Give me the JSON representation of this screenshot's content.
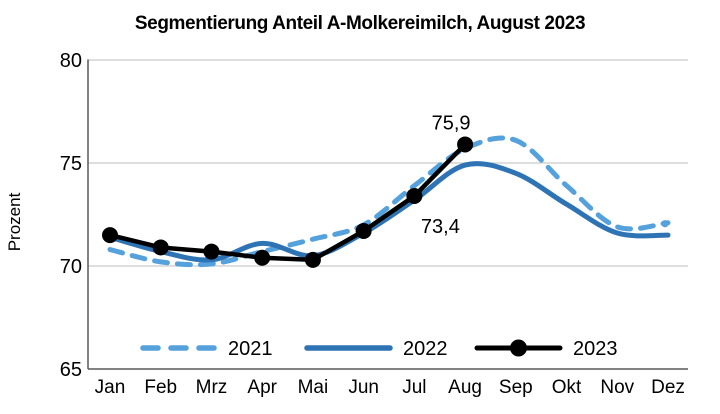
{
  "title": "Segmentierung Anteil A-Molkereimilch, August 2023",
  "y_axis": {
    "label": "Prozent",
    "ticks": [
      80,
      75,
      70,
      65
    ]
  },
  "x_axis": {
    "months": [
      "Jan",
      "Feb",
      "Mrz",
      "Apr",
      "Mai",
      "Jun",
      "Jul",
      "Aug",
      "Sep",
      "Okt",
      "Nov",
      "Dez"
    ]
  },
  "legend": {
    "items": [
      {
        "label": "2021",
        "style": "dashed",
        "color": "#55a1dc"
      },
      {
        "label": "2022",
        "style": "solid",
        "color": "#2e74b5"
      },
      {
        "label": "2023",
        "style": "marker",
        "color": "#000000"
      }
    ]
  },
  "colors": {
    "gridline": "#c9c9c9",
    "axis": "#595959",
    "series_2021": "#55a1dc",
    "series_2022": "#2e74b5",
    "series_2023": "#000000"
  },
  "chart_data": {
    "type": "line",
    "title": "Segmentierung Anteil A-Molkereimilch, August 2023",
    "xlabel": "",
    "ylabel": "Prozent",
    "ylim": [
      65,
      80
    ],
    "ytick_step": 5,
    "grid": true,
    "legend_position": "bottom-inside",
    "categories": [
      "Jan",
      "Feb",
      "Mrz",
      "Apr",
      "Mai",
      "Jun",
      "Jul",
      "Aug",
      "Sep",
      "Okt",
      "Nov",
      "Dez"
    ],
    "series": [
      {
        "name": "2021",
        "style": "dashed",
        "color": "#55a1dc",
        "end_dot": true,
        "values": [
          70.8,
          70.2,
          70.1,
          70.7,
          71.3,
          72.0,
          73.9,
          75.7,
          76.1,
          73.9,
          71.9,
          72.1
        ]
      },
      {
        "name": "2022",
        "style": "solid",
        "color": "#2e74b5",
        "end_dot": false,
        "values": [
          71.4,
          70.7,
          70.3,
          71.1,
          70.5,
          71.6,
          73.2,
          74.9,
          74.5,
          73.0,
          71.6,
          71.5
        ]
      },
      {
        "name": "2023",
        "style": "solid-markers",
        "color": "#000000",
        "end_dot": false,
        "values": [
          71.5,
          70.9,
          70.7,
          70.4,
          70.3,
          71.7,
          73.4,
          75.9,
          null,
          null,
          null,
          null
        ]
      }
    ],
    "annotations": [
      {
        "text": "75,9",
        "series": "2023",
        "month": "Aug",
        "value": 75.9,
        "placement": "above-left"
      },
      {
        "text": "73,4",
        "series": "2023",
        "month": "Jul",
        "value": 73.4,
        "placement": "below-right"
      }
    ]
  }
}
